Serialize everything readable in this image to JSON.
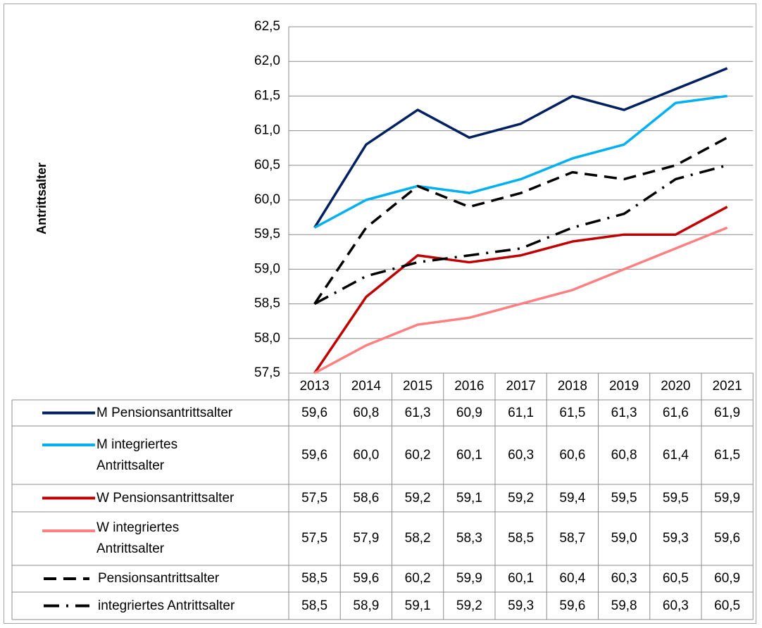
{
  "chart_data": {
    "type": "line",
    "y_axis_label": "Antrittsalter",
    "categories": [
      "2013",
      "2014",
      "2015",
      "2016",
      "2017",
      "2018",
      "2019",
      "2020",
      "2021"
    ],
    "ylim": [
      57.5,
      62.5
    ],
    "yticks": [
      {
        "value": 57.5,
        "label": "57,5"
      },
      {
        "value": 58,
        "label": "58,0"
      },
      {
        "value": 58.5,
        "label": "58,5"
      },
      {
        "value": 59,
        "label": "59,0"
      },
      {
        "value": 59.5,
        "label": "59,5"
      },
      {
        "value": 60,
        "label": "60,0"
      },
      {
        "value": 60.5,
        "label": "60,5"
      },
      {
        "value": 61,
        "label": "61,0"
      },
      {
        "value": 61.5,
        "label": "61,5"
      },
      {
        "value": 62,
        "label": "62,0"
      },
      {
        "value": 62.5,
        "label": "62,5"
      }
    ],
    "grid": true,
    "series": [
      {
        "name": "M Pensionsantrittsalter",
        "color": "#002060",
        "dash": "solid",
        "values": [
          59.6,
          60.8,
          61.3,
          60.9,
          61.1,
          61.5,
          61.3,
          61.6,
          61.9
        ],
        "value_labels": [
          "59,6",
          "60,8",
          "61,3",
          "60,9",
          "61,1",
          "61,5",
          "61,3",
          "61,6",
          "61,9"
        ]
      },
      {
        "name": "M integriertes Antrittsalter",
        "color": "#00b0f0",
        "dash": "solid",
        "values": [
          59.6,
          60.0,
          60.2,
          60.1,
          60.3,
          60.6,
          60.8,
          61.4,
          61.5
        ],
        "value_labels": [
          "59,6",
          "60,0",
          "60,2",
          "60,1",
          "60,3",
          "60,6",
          "60,8",
          "61,4",
          "61,5"
        ]
      },
      {
        "name": "W Pensionsantrittsalter",
        "color": "#c00000",
        "dash": "solid",
        "values": [
          57.5,
          58.6,
          59.2,
          59.1,
          59.2,
          59.4,
          59.5,
          59.5,
          59.9
        ],
        "value_labels": [
          "57,5",
          "58,6",
          "59,2",
          "59,1",
          "59,2",
          "59,4",
          "59,5",
          "59,5",
          "59,9"
        ]
      },
      {
        "name": "W integriertes Antrittsalter",
        "color": "#ff8080",
        "dash": "solid",
        "values": [
          57.5,
          57.9,
          58.2,
          58.3,
          58.5,
          58.7,
          59.0,
          59.3,
          59.6
        ],
        "value_labels": [
          "57,5",
          "57,9",
          "58,2",
          "58,3",
          "58,5",
          "58,7",
          "59,0",
          "59,3",
          "59,6"
        ]
      },
      {
        "name": "Pensionsantrittsalter",
        "color": "#000000",
        "dash": "dashed",
        "values": [
          58.5,
          59.6,
          60.2,
          59.9,
          60.1,
          60.4,
          60.3,
          60.5,
          60.9
        ],
        "value_labels": [
          "58,5",
          "59,6",
          "60,2",
          "59,9",
          "60,1",
          "60,4",
          "60,3",
          "60,5",
          "60,9"
        ]
      },
      {
        "name": "integriertes Antrittsalter",
        "color": "#000000",
        "dash": "dashdot",
        "values": [
          58.5,
          58.9,
          59.1,
          59.2,
          59.3,
          59.6,
          59.8,
          60.3,
          60.5
        ],
        "value_labels": [
          "58,5",
          "58,9",
          "59,1",
          "59,2",
          "59,3",
          "59,6",
          "59,8",
          "60,3",
          "60,5"
        ]
      }
    ]
  }
}
